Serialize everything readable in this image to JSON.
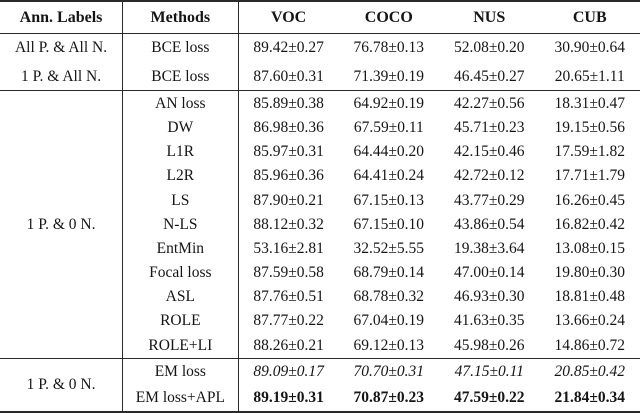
{
  "table": {
    "headers": {
      "ann_labels": "Ann. Labels",
      "methods": "Methods",
      "col1": "VOC",
      "col2": "COCO",
      "col3": "NUS",
      "col4": "CUB"
    },
    "sections": [
      {
        "rows": [
          {
            "label": "All P. & All N.",
            "method": "BCE loss",
            "values": [
              "89.42±0.27",
              "76.78±0.13",
              "52.08±0.20",
              "30.90±0.64"
            ]
          },
          {
            "label": "1 P. & All N.",
            "method": "BCE loss",
            "values": [
              "87.60±0.31",
              "71.39±0.19",
              "46.45±0.27",
              "20.65±1.11"
            ]
          }
        ]
      },
      {
        "label": "1 P. & 0 N.",
        "rows": [
          {
            "method": "AN loss",
            "values": [
              "85.89±0.38",
              "64.92±0.19",
              "42.27±0.56",
              "18.31±0.47"
            ]
          },
          {
            "method": "DW",
            "values": [
              "86.98±0.36",
              "67.59±0.11",
              "45.71±0.23",
              "19.15±0.56"
            ]
          },
          {
            "method": "L1R",
            "values": [
              "85.97±0.31",
              "64.44±0.20",
              "42.15±0.46",
              "17.59±1.82"
            ]
          },
          {
            "method": "L2R",
            "values": [
              "85.96±0.36",
              "64.41±0.24",
              "42.72±0.12",
              "17.71±1.79"
            ]
          },
          {
            "method": "LS",
            "values": [
              "87.90±0.21",
              "67.15±0.13",
              "43.77±0.29",
              "16.26±0.45"
            ]
          },
          {
            "method": "N-LS",
            "values": [
              "88.12±0.32",
              "67.15±0.10",
              "43.86±0.54",
              "16.82±0.42"
            ]
          },
          {
            "method": "EntMin",
            "values": [
              "53.16±2.81",
              "32.52±5.55",
              "19.38±3.64",
              "13.08±0.15"
            ]
          },
          {
            "method": "Focal loss",
            "values": [
              "87.59±0.58",
              "68.79±0.14",
              "47.00±0.14",
              "19.80±0.30"
            ]
          },
          {
            "method": "ASL",
            "values": [
              "87.76±0.51",
              "68.78±0.32",
              "46.93±0.30",
              "18.81±0.48"
            ]
          },
          {
            "method": "ROLE",
            "values": [
              "87.77±0.22",
              "67.04±0.19",
              "41.63±0.35",
              "13.66±0.24"
            ]
          },
          {
            "method": "ROLE+LI",
            "values": [
              "88.26±0.21",
              "69.12±0.13",
              "45.98±0.26",
              "14.86±0.72"
            ]
          }
        ]
      },
      {
        "label": "1 P. & 0 N.",
        "rows": [
          {
            "method": "EM loss",
            "emphasis": "italic",
            "values": [
              "89.09±0.17",
              "70.70±0.31",
              "47.15±0.11",
              "20.85±0.42"
            ]
          },
          {
            "method": "EM loss+APL",
            "emphasis": "bold",
            "values": [
              "89.19±0.31",
              "70.87±0.23",
              "47.59±0.22",
              "21.84±0.34"
            ]
          }
        ]
      }
    ]
  }
}
